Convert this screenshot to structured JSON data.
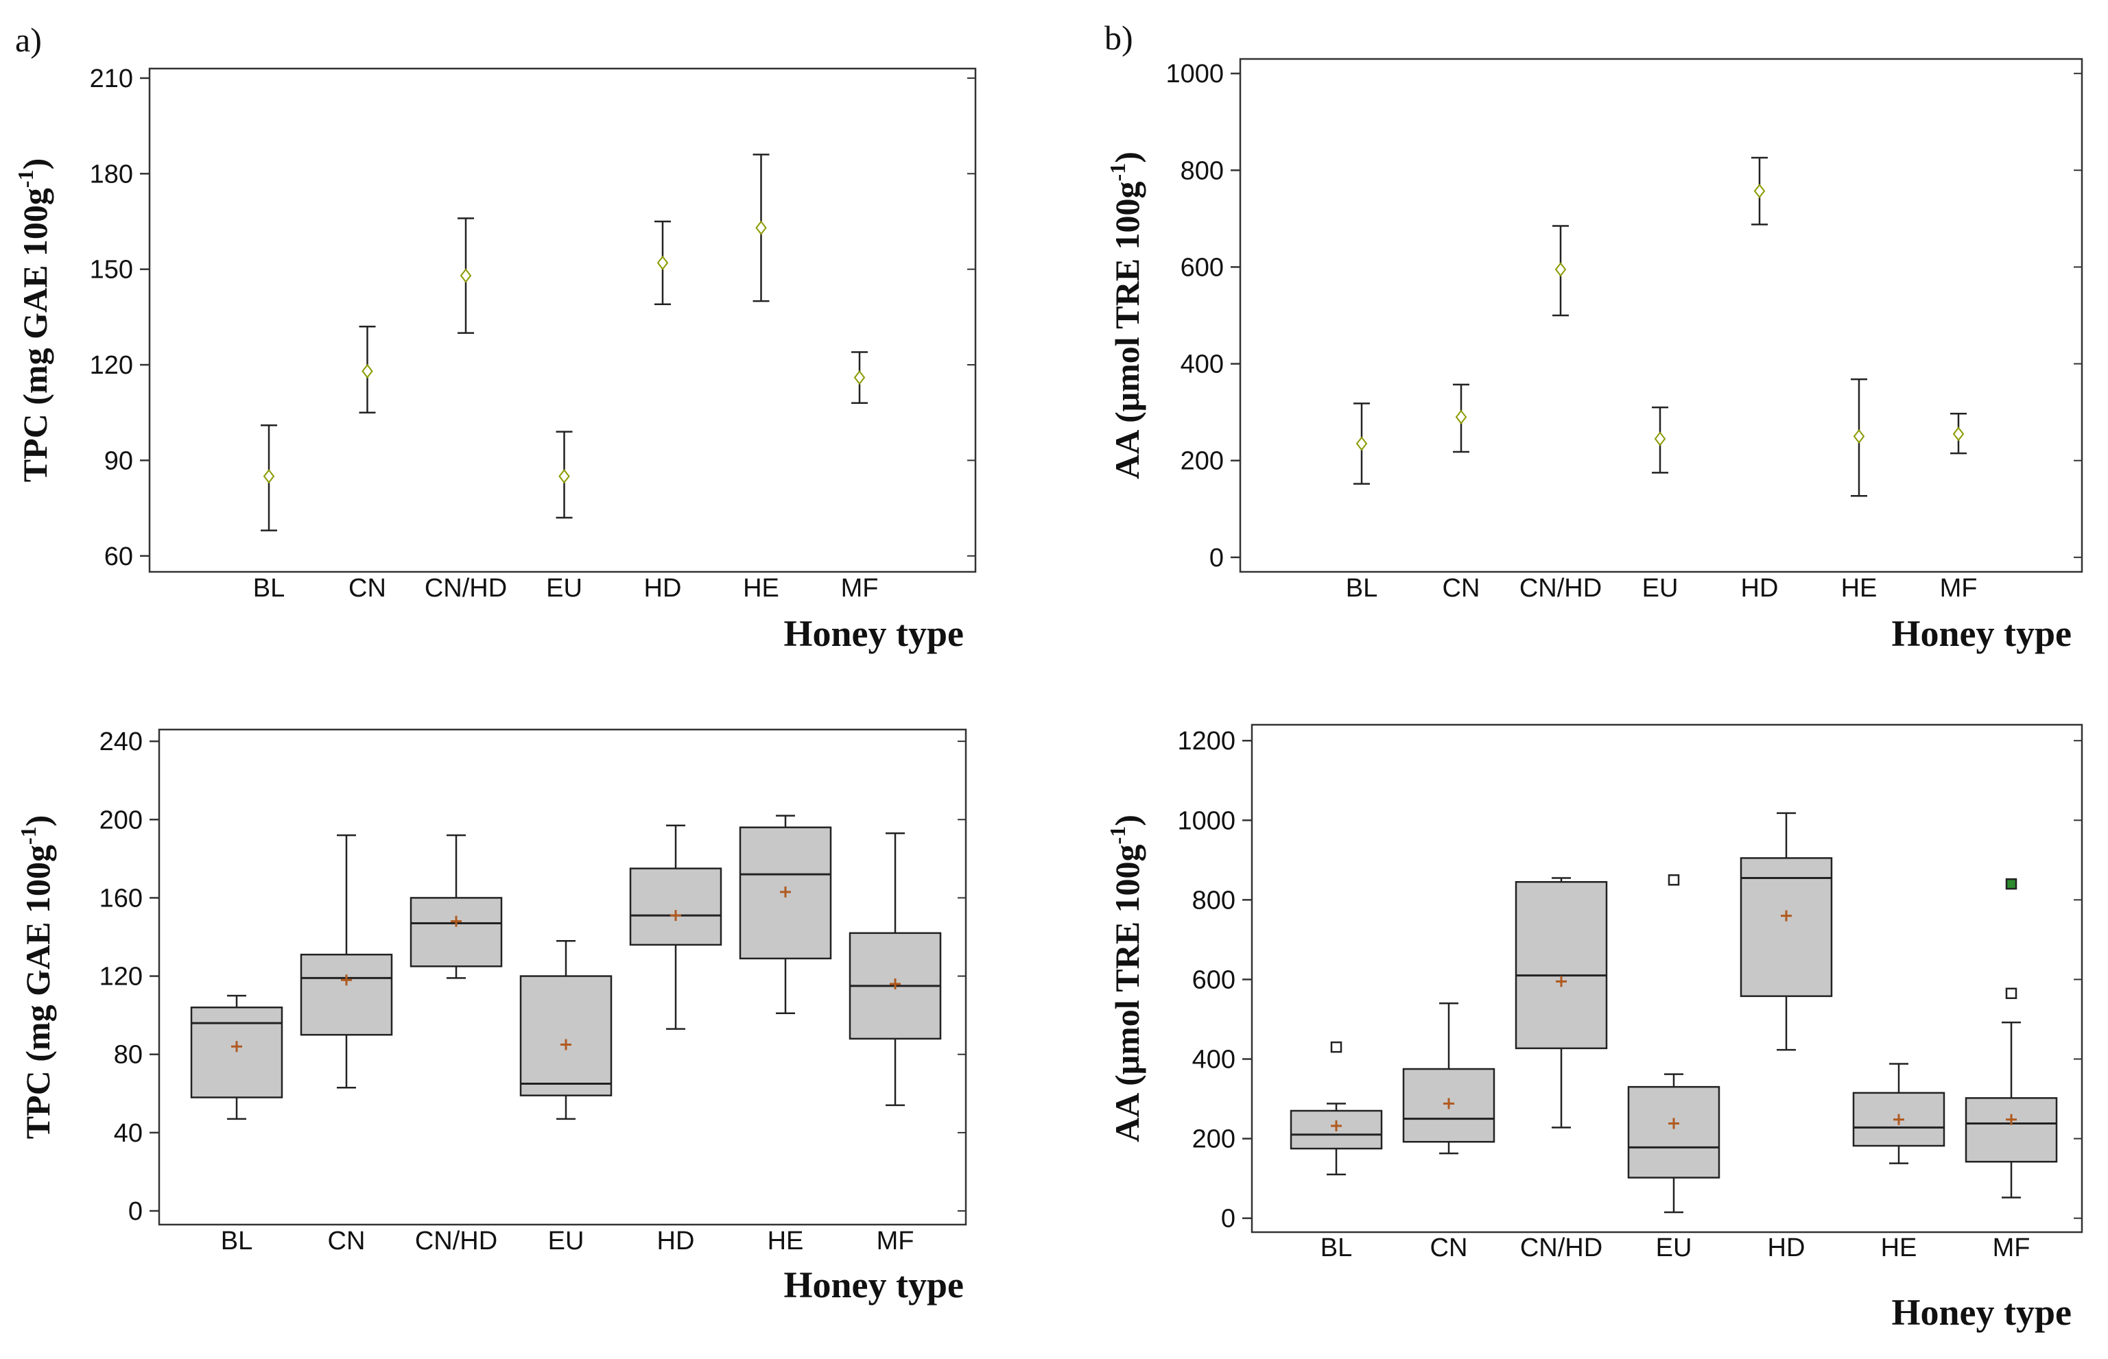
{
  "panel_labels": [
    "a)",
    "b)"
  ],
  "colors": {
    "axis": "#333333",
    "box_fill": "#c8c8c8",
    "marker_diamond": "#8a9a00",
    "mean_plus": "#b05a20",
    "outlier_highlight": "#2e8b2e"
  },
  "chart_data": [
    {
      "id": "tl",
      "type": "interval",
      "title": "",
      "xlabel": "Honey type",
      "ylabel": "TPC (mg GAE 100g-1)",
      "ylabel_main": "TPC (mg GAE 100g",
      "ylabel_sup": "-1",
      "ylabel_end": ")",
      "categories": [
        "BL",
        "CN",
        "CN/HD",
        "EU",
        "HD",
        "HE",
        "MF"
      ],
      "ylim": [
        55,
        213
      ],
      "yticks": [
        60,
        90,
        120,
        150,
        180,
        210
      ],
      "series": [
        {
          "name": "mean",
          "values": [
            85,
            118,
            148,
            85,
            152,
            163,
            116
          ]
        },
        {
          "name": "lower",
          "values": [
            68,
            105,
            130,
            72,
            139,
            140,
            108
          ]
        },
        {
          "name": "upper",
          "values": [
            101,
            132,
            166,
            99,
            165,
            186,
            124
          ]
        }
      ]
    },
    {
      "id": "tr",
      "type": "interval",
      "title": "",
      "xlabel": "Honey type",
      "ylabel": "AA (μmol TRE 100g-1)",
      "ylabel_main": "AA (μmol TRE 100g",
      "ylabel_sup": "-1",
      "ylabel_end": ")",
      "categories": [
        "BL",
        "CN",
        "CN/HD",
        "EU",
        "HD",
        "HE",
        "MF"
      ],
      "ylim": [
        -30,
        1030
      ],
      "yticks": [
        0,
        200,
        400,
        600,
        800,
        1000
      ],
      "series": [
        {
          "name": "mean",
          "values": [
            235,
            290,
            595,
            245,
            757,
            250,
            255
          ]
        },
        {
          "name": "lower",
          "values": [
            152,
            218,
            500,
            175,
            688,
            127,
            215
          ]
        },
        {
          "name": "upper",
          "values": [
            318,
            357,
            685,
            310,
            826,
            368,
            297
          ]
        }
      ]
    },
    {
      "id": "bl",
      "type": "box",
      "title": "",
      "xlabel": "Honey type",
      "ylabel": "TPC (mg GAE 100g-1)",
      "ylabel_main": "TPC (mg GAE 100g",
      "ylabel_sup": "-1",
      "ylabel_end": ")",
      "categories": [
        "BL",
        "CN",
        "CN/HD",
        "EU",
        "HD",
        "HE",
        "MF"
      ],
      "ylim": [
        -7,
        246
      ],
      "yticks": [
        0,
        40,
        80,
        120,
        160,
        200,
        240
      ],
      "boxes": [
        {
          "min": 47,
          "q1": 58,
          "median": 96,
          "q3": 104,
          "max": 110,
          "mean": 84,
          "outliers": []
        },
        {
          "min": 63,
          "q1": 90,
          "median": 119,
          "q3": 131,
          "max": 192,
          "mean": 118,
          "outliers": []
        },
        {
          "min": 119,
          "q1": 125,
          "median": 147,
          "q3": 160,
          "max": 192,
          "mean": 148,
          "outliers": []
        },
        {
          "min": 47,
          "q1": 59,
          "median": 65,
          "q3": 120,
          "max": 138,
          "mean": 85,
          "outliers": []
        },
        {
          "min": 93,
          "q1": 136,
          "median": 151,
          "q3": 175,
          "max": 197,
          "mean": 151,
          "outliers": []
        },
        {
          "min": 101,
          "q1": 129,
          "median": 172,
          "q3": 196,
          "max": 202,
          "mean": 163,
          "outliers": []
        },
        {
          "min": 54,
          "q1": 88,
          "median": 115,
          "q3": 142,
          "max": 193,
          "mean": 116,
          "outliers": []
        }
      ]
    },
    {
      "id": "br",
      "type": "box",
      "title": "",
      "xlabel": "Honey type",
      "ylabel": "AA (μmol TRE 100g-1)",
      "ylabel_main": "AA (μmol TRE 100g",
      "ylabel_sup": "-1",
      "ylabel_end": ")",
      "categories": [
        "BL",
        "CN",
        "CN/HD",
        "EU",
        "HD",
        "HE",
        "MF"
      ],
      "ylim": [
        -35,
        1240
      ],
      "yticks": [
        0,
        200,
        400,
        600,
        800,
        1000,
        1200
      ],
      "boxes": [
        {
          "min": 110,
          "q1": 175,
          "median": 210,
          "q3": 270,
          "max": 288,
          "mean": 232,
          "outliers": [
            {
              "value": 430,
              "highlight": false
            }
          ]
        },
        {
          "min": 163,
          "q1": 192,
          "median": 250,
          "q3": 375,
          "max": 540,
          "mean": 288,
          "outliers": []
        },
        {
          "min": 228,
          "q1": 427,
          "median": 610,
          "q3": 845,
          "max": 855,
          "mean": 595,
          "outliers": []
        },
        {
          "min": 15,
          "q1": 102,
          "median": 178,
          "q3": 330,
          "max": 362,
          "mean": 238,
          "outliers": [
            {
              "value": 850,
              "highlight": false
            }
          ]
        },
        {
          "min": 423,
          "q1": 558,
          "median": 855,
          "q3": 905,
          "max": 1018,
          "mean": 760,
          "outliers": []
        },
        {
          "min": 138,
          "q1": 182,
          "median": 228,
          "q3": 315,
          "max": 388,
          "mean": 248,
          "outliers": []
        },
        {
          "min": 52,
          "q1": 142,
          "median": 238,
          "q3": 302,
          "max": 492,
          "mean": 248,
          "outliers": [
            {
              "value": 565,
              "highlight": false
            },
            {
              "value": 840,
              "highlight": true
            }
          ]
        }
      ]
    }
  ]
}
